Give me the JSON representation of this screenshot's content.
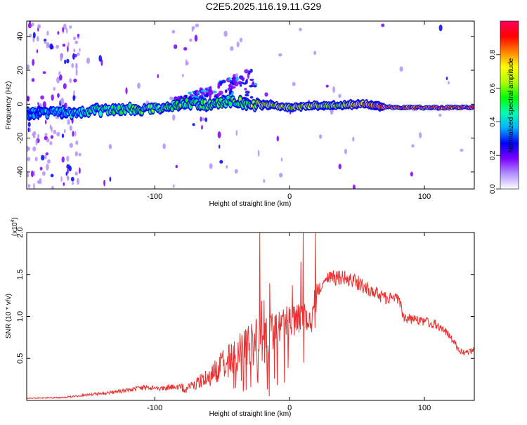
{
  "figure": {
    "title": "C2E5.2025.116.19.11.G29"
  },
  "chart_data": [
    {
      "type": "heatmap",
      "name": "spectrogram",
      "xlabel": "Height of straight line (km)",
      "ylabel": "Frequency (Hz)",
      "xlim": [
        -195,
        137
      ],
      "ylim": [
        -50,
        49
      ],
      "x_ticks": [
        -100,
        0,
        100
      ],
      "y_ticks": [
        -40,
        -20,
        0,
        20,
        40
      ],
      "colorbar": {
        "label": "Normalized spectral amplitude",
        "range": [
          0,
          1
        ],
        "ticks": [
          "0.0",
          "0.2",
          "0.4",
          "0.6",
          "0.8"
        ],
        "ticks_values": [
          0.0,
          0.2,
          0.4,
          0.6,
          0.8
        ],
        "colors": [
          "#ffffff",
          "#b090ff",
          "#7a00ff",
          "#0000ff",
          "#00b0ff",
          "#00ffb0",
          "#00ff00",
          "#b0ff00",
          "#ffff00",
          "#ff8000",
          "#ff0000",
          "#ff0060"
        ]
      },
      "ridge": [
        {
          "x": -190,
          "f": -5,
          "a": 0.35
        },
        {
          "x": -170,
          "f": -5,
          "a": 0.4
        },
        {
          "x": -150,
          "f": -4,
          "a": 0.5
        },
        {
          "x": -130,
          "f": -3,
          "a": 0.55
        },
        {
          "x": -110,
          "f": -3,
          "a": 0.6
        },
        {
          "x": -90,
          "f": -2,
          "a": 0.6
        },
        {
          "x": -75,
          "f": 1,
          "a": 0.55
        },
        {
          "x": -60,
          "f": -1,
          "a": 0.6
        },
        {
          "x": -45,
          "f": 2,
          "a": 0.55
        },
        {
          "x": -30,
          "f": 0,
          "a": 0.65
        },
        {
          "x": -20,
          "f": 0,
          "a": 0.8
        },
        {
          "x": 0,
          "f": -2,
          "a": 0.75
        },
        {
          "x": 10,
          "f": -1,
          "a": 0.8
        },
        {
          "x": 30,
          "f": -1,
          "a": 0.7
        },
        {
          "x": 55,
          "f": 0,
          "a": 0.9
        },
        {
          "x": 75,
          "f": -2,
          "a": 1.0
        },
        {
          "x": 100,
          "f": -2,
          "a": 1.0
        },
        {
          "x": 137,
          "f": -2,
          "a": 1.0
        }
      ]
    },
    {
      "type": "line",
      "name": "snr",
      "xlabel": "Height of straight line (km)",
      "ylabel": "SNR (10 * v/v)",
      "y_multiplier": "(x10^4)",
      "y_multiplier_base": "(x10",
      "y_multiplier_exp": "4",
      "y_multiplier_close": ")",
      "xlim": [
        -195,
        137
      ],
      "ylim": [
        0,
        2.0
      ],
      "x_ticks": [
        -100,
        0,
        100
      ],
      "y_ticks": [
        0.5,
        1.0,
        1.5,
        2.0
      ],
      "y_tick_labels": [
        "0.5",
        "1.0",
        "1.5",
        "2.0"
      ],
      "color": "#ee3030",
      "envelope": [
        {
          "x": -195,
          "y": 0.03
        },
        {
          "x": -170,
          "y": 0.04
        },
        {
          "x": -150,
          "y": 0.08
        },
        {
          "x": -130,
          "y": 0.12
        },
        {
          "x": -110,
          "y": 0.18
        },
        {
          "x": -95,
          "y": 0.18
        },
        {
          "x": -80,
          "y": 0.2
        },
        {
          "x": -70,
          "y": 0.28
        },
        {
          "x": -60,
          "y": 0.4
        },
        {
          "x": -50,
          "y": 0.6
        },
        {
          "x": -40,
          "y": 0.75
        },
        {
          "x": -30,
          "y": 0.95
        },
        {
          "x": -20,
          "y": 1.0
        },
        {
          "x": -10,
          "y": 1.05
        },
        {
          "x": 0,
          "y": 1.15
        },
        {
          "x": 10,
          "y": 1.25
        },
        {
          "x": 20,
          "y": 1.4
        },
        {
          "x": 30,
          "y": 1.55
        },
        {
          "x": 40,
          "y": 1.55
        },
        {
          "x": 50,
          "y": 1.5
        },
        {
          "x": 60,
          "y": 1.4
        },
        {
          "x": 70,
          "y": 1.3
        },
        {
          "x": 80,
          "y": 1.3
        },
        {
          "x": 85,
          "y": 1.05
        },
        {
          "x": 100,
          "y": 1.0
        },
        {
          "x": 110,
          "y": 0.95
        },
        {
          "x": 120,
          "y": 0.8
        },
        {
          "x": 125,
          "y": 0.65
        },
        {
          "x": 130,
          "y": 0.6
        },
        {
          "x": 137,
          "y": 0.65
        }
      ],
      "spikes": [
        {
          "x": -22,
          "y": 2.0
        },
        {
          "x": 10,
          "y": 2.0
        },
        {
          "x": 10.5,
          "y": 0.45
        },
        {
          "x": -15,
          "y": 0.05
        },
        {
          "x": -40,
          "y": 0.15
        }
      ]
    }
  ]
}
